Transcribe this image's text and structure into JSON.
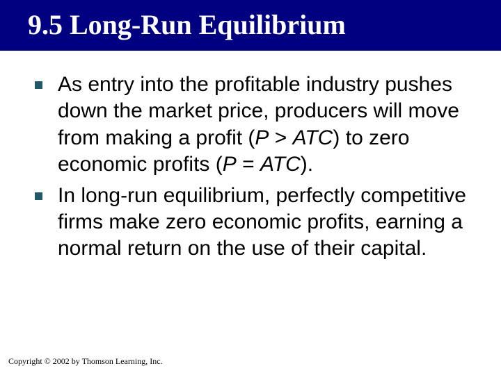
{
  "title": "9.5  Long-Run Equilibrium",
  "title_bg": "#000080",
  "title_color": "#ffffff",
  "title_fontsize": 40,
  "bullet_marker_color": "#215968",
  "bullet_marker_size": 11,
  "body_fontsize": 30,
  "body_color": "#000000",
  "background_color": "#ffffff",
  "bullets": [
    {
      "pre": "As entry into the profitable industry pushes down the market price, producers will move from making a profit (",
      "italic1": "P",
      "mid1": " > ",
      "italic2": "ATC",
      "mid2": ") to zero economic profits (",
      "italic3": "P",
      "mid3": " = ",
      "italic4": "ATC",
      "post": ")."
    },
    {
      "pre": "In long‑run equilibrium, perfectly competitive firms make zero economic profits, earning a normal return on the use of their capital.",
      "italic1": "",
      "mid1": "",
      "italic2": "",
      "mid2": "",
      "italic3": "",
      "mid3": "",
      "italic4": "",
      "post": ""
    }
  ],
  "footer": "Copyright © 2002 by Thomson Learning, Inc."
}
